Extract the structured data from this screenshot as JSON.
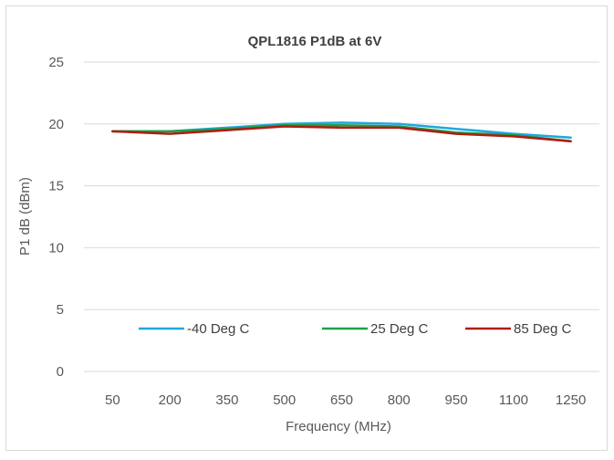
{
  "chart_data": {
    "type": "line",
    "title": "QPL1816 P1dB  at 6V",
    "xlabel": "Frequency (MHz)",
    "ylabel": "P1 dB (dBm)",
    "categories": [
      "50",
      "200",
      "350",
      "500",
      "650",
      "800",
      "950",
      "1100",
      "1250"
    ],
    "ylim": [
      0,
      25
    ],
    "yticks": [
      0,
      5,
      10,
      15,
      20,
      25
    ],
    "grid": true,
    "legend_position": "inside-bottom",
    "series": [
      {
        "name": "-40 Deg C",
        "color": "#1FA7E1",
        "values": [
          19.4,
          19.4,
          19.7,
          20.0,
          20.1,
          20.0,
          19.6,
          19.2,
          18.9
        ]
      },
      {
        "name": "25 Deg C",
        "color": "#1BA148",
        "values": [
          19.4,
          19.4,
          19.6,
          19.9,
          19.9,
          19.8,
          19.3,
          19.1,
          18.6
        ]
      },
      {
        "name": "85 Deg C",
        "color": "#B01C12",
        "values": [
          19.4,
          19.2,
          19.5,
          19.8,
          19.7,
          19.7,
          19.2,
          19.0,
          18.6
        ]
      }
    ]
  }
}
